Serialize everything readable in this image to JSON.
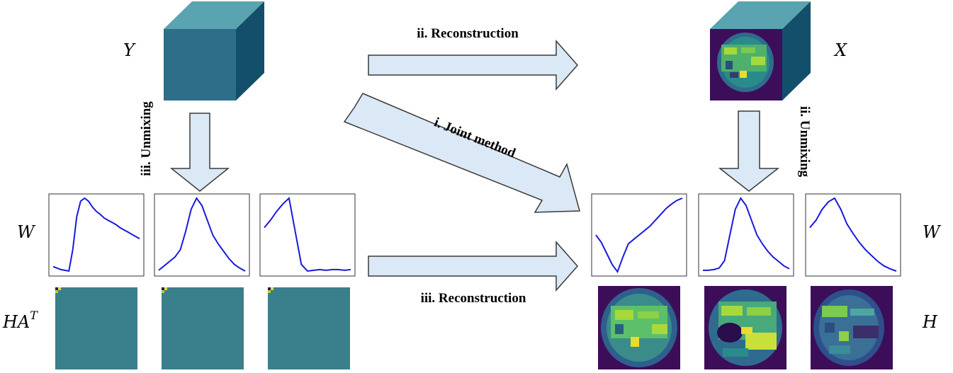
{
  "labels": {
    "Y": "Y",
    "X": "X",
    "W_left": "W",
    "W_right": "W",
    "HA": "HA",
    "HA_sup": "T",
    "H": "H"
  },
  "arrows": {
    "top_reconstruction": "ii. Reconstruction",
    "joint_method": "i. Joint method",
    "bottom_reconstruction": "iii. Reconstruction",
    "left_unmixing": "iii. Unmixing",
    "right_unmixing": "ii. Unmixing"
  },
  "colors": {
    "cube_front": "#2e6e88",
    "cube_top": "#5aa3b0",
    "cube_side": "#134f6b",
    "arrow_fill": "#dbe8f5",
    "arrow_stroke": "#3a3a3a",
    "curve": "#1a1adb",
    "map_teal": "#3a7f8c",
    "map_dark": "#3c0e5a"
  },
  "spectra": {
    "left": [
      [
        0.93,
        0.95,
        0.97,
        0.98,
        0.99,
        0.7,
        0.25,
        0.04,
        0.0,
        0.04,
        0.12,
        0.18,
        0.22,
        0.27,
        0.3,
        0.33,
        0.36,
        0.4,
        0.43,
        0.46,
        0.49,
        0.52,
        0.55
      ],
      [
        0.98,
        0.92,
        0.86,
        0.8,
        0.7,
        0.45,
        0.15,
        0.0,
        0.1,
        0.3,
        0.5,
        0.62,
        0.72,
        0.82,
        0.9,
        0.95,
        0.99
      ],
      [
        0.4,
        0.3,
        0.18,
        0.08,
        0.0,
        0.45,
        0.9,
        0.99,
        0.98,
        0.97,
        0.98,
        0.97,
        0.97,
        0.98,
        0.97
      ]
    ],
    "right": [
      [
        0.5,
        0.6,
        0.75,
        0.9,
        1.0,
        0.8,
        0.62,
        0.56,
        0.5,
        0.44,
        0.38,
        0.3,
        0.22,
        0.14,
        0.08,
        0.03,
        0.0
      ],
      [
        0.98,
        0.98,
        0.97,
        0.95,
        0.85,
        0.5,
        0.15,
        0.0,
        0.1,
        0.3,
        0.5,
        0.62,
        0.72,
        0.8,
        0.86,
        0.92,
        0.96
      ],
      [
        0.4,
        0.3,
        0.15,
        0.05,
        0.0,
        0.15,
        0.35,
        0.48,
        0.6,
        0.7,
        0.78,
        0.86,
        0.92,
        0.96,
        0.99
      ]
    ]
  }
}
